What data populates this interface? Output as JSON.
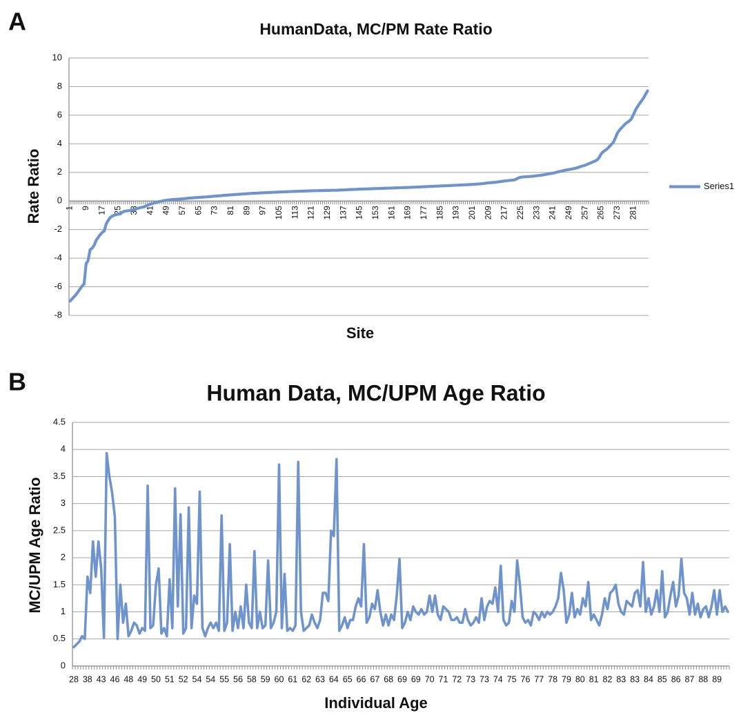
{
  "chart_data": [
    {
      "type": "line",
      "panel": "A",
      "title": "HumanData, MC/PM Rate Ratio",
      "x_label": "Site",
      "y_label": "Rate Ratio",
      "categories": [
        "1",
        null,
        null,
        null,
        null,
        null,
        null,
        null,
        "9",
        null,
        null,
        null,
        null,
        null,
        null,
        null,
        "17",
        null,
        null,
        null,
        null,
        null,
        null,
        null,
        "25",
        null,
        null,
        null,
        null,
        null,
        null,
        null,
        "33",
        null,
        null,
        null,
        null,
        null,
        null,
        null,
        "41",
        null,
        null,
        null,
        null,
        null,
        null,
        null,
        "49",
        null,
        null,
        null,
        null,
        null,
        null,
        null,
        "57",
        null,
        null,
        null,
        null,
        null,
        null,
        null,
        "65",
        null,
        null,
        null,
        null,
        null,
        null,
        null,
        "73",
        null,
        null,
        null,
        null,
        null,
        null,
        null,
        "81",
        null,
        null,
        null,
        null,
        null,
        null,
        null,
        "89",
        null,
        null,
        null,
        null,
        null,
        null,
        null,
        "97",
        null,
        null,
        null,
        null,
        null,
        null,
        null,
        "105",
        null,
        null,
        null,
        null,
        null,
        null,
        null,
        "113",
        null,
        null,
        null,
        null,
        null,
        null,
        null,
        "121",
        null,
        null,
        null,
        null,
        null,
        null,
        null,
        "129",
        null,
        null,
        null,
        null,
        null,
        null,
        null,
        "137",
        null,
        null,
        null,
        null,
        null,
        null,
        null,
        "145",
        null,
        null,
        null,
        null,
        null,
        null,
        null,
        "153",
        null,
        null,
        null,
        null,
        null,
        null,
        null,
        "161",
        null,
        null,
        null,
        null,
        null,
        null,
        null,
        "169",
        null,
        null,
        null,
        null,
        null,
        null,
        null,
        "177",
        null,
        null,
        null,
        null,
        null,
        null,
        null,
        "185",
        null,
        null,
        null,
        null,
        null,
        null,
        null,
        "193",
        null,
        null,
        null,
        null,
        null,
        null,
        null,
        "201",
        null,
        null,
        null,
        null,
        null,
        null,
        null,
        "209",
        null,
        null,
        null,
        null,
        null,
        null,
        null,
        "217",
        null,
        null,
        null,
        null,
        null,
        null,
        null,
        "225",
        null,
        null,
        null,
        null,
        null,
        null,
        null,
        "233",
        null,
        null,
        null,
        null,
        null,
        null,
        null,
        "241",
        null,
        null,
        null,
        null,
        null,
        null,
        null,
        "249",
        null,
        null,
        null,
        null,
        null,
        null,
        null,
        "257",
        null,
        null,
        null,
        null,
        null,
        null,
        null,
        "265",
        null,
        null,
        null,
        null,
        null,
        null,
        null,
        "273",
        null,
        null,
        null,
        null,
        null,
        null,
        null,
        "281",
        null,
        null,
        null,
        null,
        null,
        null,
        null
      ],
      "series": [
        {
          "name": "Series1",
          "color": "#6f94cc",
          "values": [
            -7,
            -6.85,
            -6.7,
            -6.55,
            -6.35,
            -6.15,
            -5.95,
            -5.8,
            -4.4,
            -4.15,
            -3.4,
            -3.3,
            -3.1,
            -2.75,
            -2.55,
            -2.35,
            -2.2,
            -2.1,
            -1.6,
            -1.35,
            -1.15,
            -1.05,
            -1.0,
            -0.95,
            -0.92,
            -0.9,
            -0.78,
            -0.72,
            -0.7,
            -0.68,
            -0.65,
            -0.62,
            -0.6,
            -0.55,
            -0.5,
            -0.46,
            -0.43,
            -0.4,
            -0.33,
            -0.27,
            -0.22,
            -0.18,
            -0.13,
            -0.09,
            -0.05,
            -0.03,
            0,
            0.03,
            0.05,
            0.07,
            0.09,
            0.1,
            0.11,
            0.12,
            0.13,
            0.14,
            0.15,
            0.17,
            0.18,
            0.2,
            0.21,
            0.22,
            0.23,
            0.24,
            0.25,
            0.26,
            0.27,
            0.28,
            0.29,
            0.3,
            0.31,
            0.33,
            0.34,
            0.35,
            0.36,
            0.37,
            0.39,
            0.4,
            0.41,
            0.42,
            0.43,
            0.44,
            0.45,
            0.46,
            0.47,
            0.48,
            0.49,
            0.5,
            0.51,
            0.52,
            0.53,
            0.54,
            0.54,
            0.55,
            0.56,
            0.57,
            0.57,
            0.58,
            0.59,
            0.59,
            0.6,
            0.61,
            0.61,
            0.62,
            0.63,
            0.63,
            0.64,
            0.64,
            0.65,
            0.66,
            0.66,
            0.67,
            0.67,
            0.68,
            0.68,
            0.69,
            0.69,
            0.7,
            0.7,
            0.71,
            0.71,
            0.72,
            0.72,
            0.72,
            0.73,
            0.73,
            0.73,
            0.74,
            0.74,
            0.74,
            0.75,
            0.75,
            0.75,
            0.76,
            0.76,
            0.77,
            0.77,
            0.78,
            0.79,
            0.8,
            0.8,
            0.81,
            0.81,
            0.82,
            0.83,
            0.83,
            0.84,
            0.84,
            0.85,
            0.85,
            0.86,
            0.86,
            0.87,
            0.87,
            0.88,
            0.88,
            0.89,
            0.89,
            0.9,
            0.9,
            0.91,
            0.91,
            0.92,
            0.92,
            0.93,
            0.93,
            0.94,
            0.94,
            0.95,
            0.95,
            0.96,
            0.96,
            0.97,
            0.98,
            0.98,
            0.99,
            1,
            1,
            1.01,
            1.02,
            1.02,
            1.03,
            1.04,
            1.04,
            1.05,
            1.06,
            1.06,
            1.07,
            1.08,
            1.08,
            1.09,
            1.1,
            1.1,
            1.11,
            1.12,
            1.12,
            1.13,
            1.14,
            1.14,
            1.15,
            1.16,
            1.17,
            1.18,
            1.19,
            1.2,
            1.22,
            1.23,
            1.25,
            1.27,
            1.28,
            1.29,
            1.3,
            1.32,
            1.34,
            1.36,
            1.38,
            1.4,
            1.42,
            1.43,
            1.45,
            1.46,
            1.48,
            1.55,
            1.62,
            1.66,
            1.68,
            1.69,
            1.7,
            1.71,
            1.72,
            1.73,
            1.75,
            1.77,
            1.78,
            1.8,
            1.82,
            1.85,
            1.87,
            1.9,
            1.92,
            1.95,
            1.98,
            2.02,
            2.05,
            2.08,
            2.12,
            2.15,
            2.18,
            2.2,
            2.22,
            2.25,
            2.28,
            2.32,
            2.37,
            2.42,
            2.46,
            2.5,
            2.56,
            2.62,
            2.68,
            2.74,
            2.8,
            2.88,
            3.05,
            3.3,
            3.45,
            3.55,
            3.65,
            3.8,
            3.95,
            4.1,
            4.4,
            4.75,
            4.95,
            5.1,
            5.25,
            5.4,
            5.5,
            5.6,
            5.75,
            6.05,
            6.35,
            6.6,
            6.8,
            7.0,
            7.2,
            7.45,
            7.7
          ]
        }
      ],
      "ylim": [
        -8,
        10
      ],
      "yticks": [
        -8,
        -6,
        -4,
        -2,
        0,
        2,
        4,
        6,
        8,
        10
      ],
      "grid": true,
      "legend": "right"
    },
    {
      "type": "line",
      "panel": "B",
      "title": "Human Data, MC/UPM Age Ratio",
      "x_label": "Individual Age",
      "y_label": "MC/UPM Age Ratio",
      "categories": [
        "28",
        null,
        null,
        null,
        null,
        "38",
        null,
        null,
        null,
        null,
        "43",
        null,
        null,
        null,
        null,
        "46",
        null,
        null,
        null,
        null,
        "48",
        null,
        null,
        null,
        null,
        "49",
        null,
        null,
        null,
        null,
        "50",
        null,
        null,
        null,
        null,
        "51",
        null,
        null,
        null,
        null,
        "52",
        null,
        null,
        null,
        null,
        "54",
        null,
        null,
        null,
        null,
        "54",
        null,
        null,
        null,
        null,
        "55",
        null,
        null,
        null,
        null,
        "56",
        null,
        null,
        null,
        null,
        "58",
        null,
        null,
        null,
        null,
        "59",
        null,
        null,
        null,
        null,
        "60",
        null,
        null,
        null,
        null,
        "61",
        null,
        null,
        null,
        null,
        "62",
        null,
        null,
        null,
        null,
        "63",
        null,
        null,
        null,
        null,
        "64",
        null,
        null,
        null,
        null,
        "65",
        null,
        null,
        null,
        null,
        "66",
        null,
        null,
        null,
        null,
        "67",
        null,
        null,
        null,
        null,
        "68",
        null,
        null,
        null,
        null,
        "69",
        null,
        null,
        null,
        null,
        "69",
        null,
        null,
        null,
        null,
        "70",
        null,
        null,
        null,
        null,
        "71",
        null,
        null,
        null,
        null,
        "72",
        null,
        null,
        null,
        null,
        "73",
        null,
        null,
        null,
        null,
        "73",
        null,
        null,
        null,
        null,
        "74",
        null,
        null,
        null,
        null,
        "75",
        null,
        null,
        null,
        null,
        "76",
        null,
        null,
        null,
        null,
        "77",
        null,
        null,
        null,
        null,
        "78",
        null,
        null,
        null,
        null,
        "79",
        null,
        null,
        null,
        null,
        "80",
        null,
        null,
        null,
        null,
        "81",
        null,
        null,
        null,
        null,
        "82",
        null,
        null,
        null,
        null,
        "83",
        null,
        null,
        null,
        null,
        "83",
        null,
        null,
        null,
        null,
        "84",
        null,
        null,
        null,
        null,
        "85",
        null,
        null,
        null,
        null,
        "86",
        null,
        null,
        null,
        null,
        "87",
        null,
        null,
        null,
        null,
        "88",
        null,
        null,
        null,
        null,
        "89",
        null,
        null,
        null,
        null
      ],
      "color": "#6f94cc",
      "values": [
        0.35,
        0.4,
        0.45,
        0.55,
        0.5,
        1.65,
        1.35,
        2.3,
        1.65,
        2.3,
        1.8,
        0.52,
        3.93,
        3.5,
        3.2,
        2.75,
        0.5,
        1.5,
        0.8,
        1.15,
        0.55,
        0.65,
        0.8,
        0.75,
        0.6,
        0.7,
        0.65,
        3.33,
        0.7,
        0.75,
        1.5,
        1.8,
        0.6,
        0.7,
        0.55,
        1.6,
        0.7,
        3.28,
        1.1,
        2.8,
        0.6,
        0.7,
        2.93,
        0.7,
        1.3,
        1.15,
        3.22,
        0.7,
        0.55,
        0.7,
        0.8,
        0.7,
        0.8,
        0.65,
        2.78,
        0.65,
        0.8,
        2.25,
        0.65,
        1.0,
        0.7,
        1.1,
        0.7,
        1.5,
        0.8,
        0.7,
        2.12,
        0.7,
        1.0,
        0.7,
        0.75,
        1.95,
        0.7,
        0.8,
        1.0,
        3.72,
        0.7,
        1.7,
        0.65,
        0.7,
        0.65,
        0.75,
        3.77,
        1.0,
        0.65,
        0.7,
        0.75,
        0.95,
        0.8,
        0.7,
        0.85,
        1.35,
        1.35,
        1.2,
        2.5,
        2.4,
        3.82,
        0.65,
        0.75,
        0.9,
        0.7,
        0.85,
        0.85,
        1.1,
        1.25,
        1.1,
        2.25,
        0.8,
        0.9,
        1.15,
        1.05,
        1.4,
        1.0,
        0.75,
        0.95,
        0.75,
        0.95,
        0.85,
        1.3,
        1.98,
        0.7,
        0.8,
        1.0,
        0.85,
        1.1,
        1.0,
        0.95,
        1.05,
        0.95,
        1.0,
        1.3,
        1.0,
        1.3,
        0.95,
        0.85,
        1.1,
        1.05,
        1.0,
        0.85,
        0.85,
        0.9,
        0.8,
        0.8,
        1.05,
        0.85,
        0.75,
        0.8,
        0.9,
        0.8,
        1.25,
        0.85,
        1.1,
        1.2,
        1.15,
        1.45,
        1.0,
        1.85,
        0.85,
        0.75,
        0.8,
        1.2,
        1.0,
        1.95,
        1.5,
        0.9,
        0.8,
        0.85,
        0.75,
        1.0,
        0.95,
        0.85,
        1.0,
        0.9,
        1.0,
        0.95,
        1.0,
        1.1,
        1.25,
        1.72,
        1.4,
        0.8,
        0.95,
        1.35,
        0.9,
        1.05,
        0.95,
        1.25,
        1.1,
        1.55,
        0.85,
        0.95,
        0.85,
        0.75,
        0.95,
        1.25,
        1.05,
        1.35,
        1.4,
        1.5,
        1.15,
        1.0,
        0.95,
        1.2,
        1.15,
        1.1,
        1.35,
        1.4,
        1.1,
        1.92,
        1.0,
        1.25,
        0.95,
        1.1,
        1.4,
        1.0,
        1.75,
        0.9,
        1.0,
        1.3,
        1.55,
        1.1,
        1.3,
        1.98,
        1.35,
        1.25,
        0.95,
        1.35,
        0.95,
        1.15,
        0.9,
        1.05,
        1.1,
        0.9,
        1.1,
        1.4,
        0.95,
        1.4,
        1.0,
        1.1,
        1.0
      ],
      "ylim": [
        0,
        4.5
      ],
      "yticks": [
        0,
        0.5,
        1,
        1.5,
        2,
        2.5,
        3,
        3.5,
        4,
        4.5
      ],
      "grid": true
    }
  ]
}
